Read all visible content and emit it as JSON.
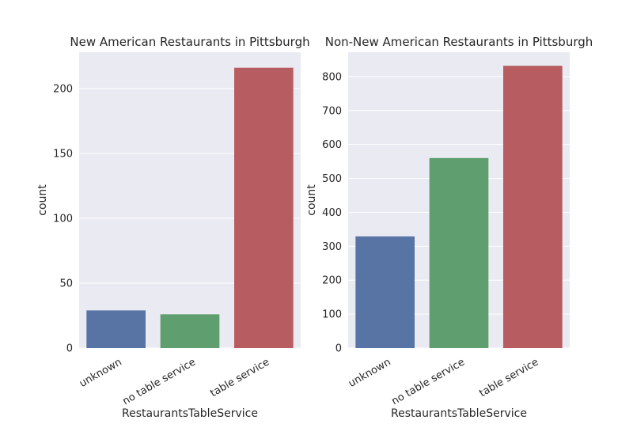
{
  "chart_data": [
    {
      "type": "bar",
      "title": "New American Restaurants in Pittsburgh",
      "xlabel": "RestaurantsTableService",
      "ylabel": "count",
      "categories": [
        "unknown",
        "no table service",
        "table service"
      ],
      "values": [
        29,
        26,
        216
      ],
      "colors": [
        "#5874a4",
        "#5f9e6e",
        "#b75d61"
      ],
      "ylim": [
        0,
        228
      ],
      "yticks": [
        0,
        50,
        100,
        150,
        200
      ],
      "grid": true
    },
    {
      "type": "bar",
      "title": "Non-New American Restaurants in Pittsburgh",
      "xlabel": "RestaurantsTableService",
      "ylabel": "count",
      "categories": [
        "unknown",
        "no table service",
        "table service"
      ],
      "values": [
        329,
        560,
        832
      ],
      "colors": [
        "#5874a4",
        "#5f9e6e",
        "#b75d61"
      ],
      "ylim": [
        0,
        872
      ],
      "yticks": [
        0,
        100,
        200,
        300,
        400,
        500,
        600,
        700,
        800
      ],
      "grid": true
    }
  ]
}
